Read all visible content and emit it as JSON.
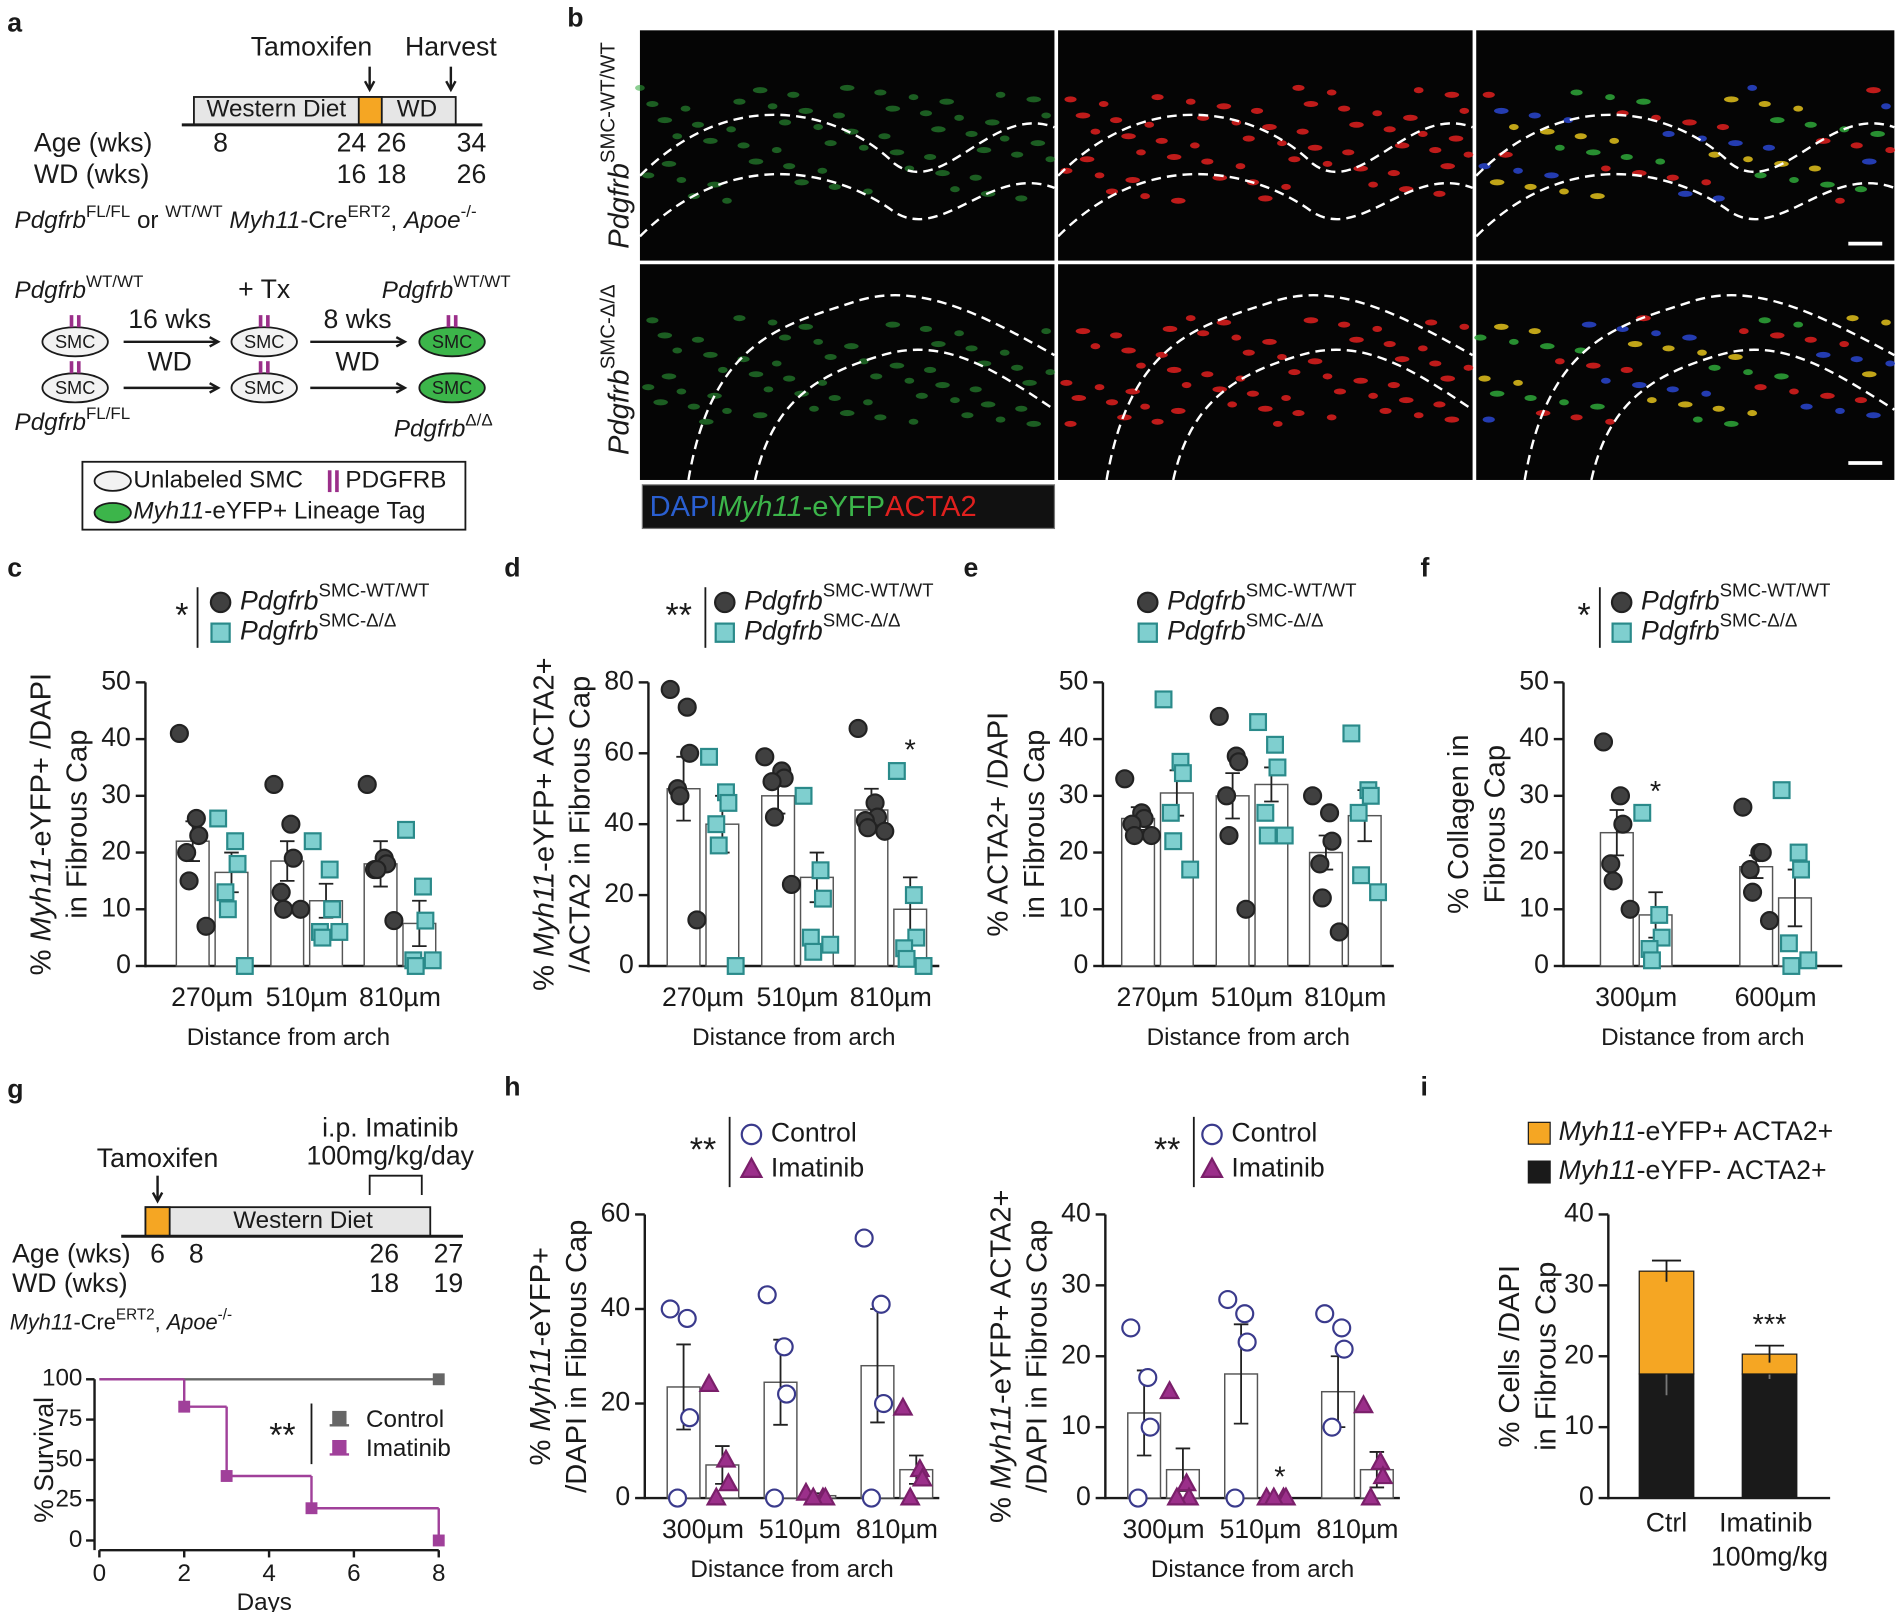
{
  "panels": {
    "a": {
      "label": "a",
      "tamoxifen": "Tamoxifen",
      "harvest": "Harvest",
      "western_diet": "Western Diet",
      "wd": "WD",
      "age_label": "Age (wks)",
      "wd_label": "WD (wks)",
      "ages": [
        "8",
        "24",
        "26",
        "34"
      ],
      "wds": [
        "16",
        "18",
        "26"
      ],
      "genotype": [
        "Pdgfrb",
        "FL/FL",
        " or ",
        "WT/WT",
        " Myh11",
        "-Cre",
        "ERT2",
        ", ",
        "Apoe",
        "-/-"
      ],
      "gene": "Pdgfrb",
      "wt": "WT/WT",
      "fl": "FL/FL",
      "del": "Δ/Δ",
      "smc": "SMC",
      "sixteen": "16 wks",
      "tx": "+ Tx",
      "eight": "8 wks",
      "wd_arrow": "WD",
      "key": [
        "Unlabeled SMC",
        "PDGFRB",
        "Myh11",
        "-eYFP+ Lineage Tag"
      ]
    },
    "b": {
      "label": "b",
      "rows": [
        [
          "Pdgfrb",
          "SMC-WT/WT"
        ],
        [
          "Pdgfrb",
          "SMC-Δ/Δ"
        ]
      ],
      "channels": [
        "DAPI",
        "Myh11",
        "-eYFP",
        "ACTA2"
      ]
    },
    "g": {
      "label": "g",
      "tamoxifen": "Tamoxifen",
      "treatment": [
        "i.p. Imatinib",
        "100mg/kg/day"
      ],
      "western_diet": "Western Diet",
      "age_label": "Age (wks)",
      "wd_label": "WD (wks)",
      "ages": [
        "6",
        "8",
        "26",
        "27"
      ],
      "wds": [
        "18",
        "19"
      ],
      "genotype": [
        "Myh11",
        "-Cre",
        "ERT2",
        ", ",
        "Apoe",
        "-/-"
      ]
    }
  },
  "chart_data": [
    {
      "type": "bar",
      "panel": "c",
      "ylabel": [
        "% Myh11-eYFP+ /DAPI",
        "in Fibrous Cap"
      ],
      "xlabel": "Distance from arch",
      "categories": [
        "270µm",
        "510µm",
        "810µm"
      ],
      "ylim": [
        0,
        50
      ],
      "yticks": [
        0,
        10,
        20,
        30,
        40,
        50
      ],
      "significance": "*",
      "series": [
        {
          "name": "Pdgfrb",
          "name_sup": "SMC-WT/WT",
          "marker": "circle",
          "color": "#404040",
          "edgecolor": "#222222",
          "values": [
            22,
            18.5,
            18
          ],
          "errors": [
            3.5,
            3.5,
            4
          ],
          "points": [
            [
              41,
              26,
              23,
              20,
              15,
              7
            ],
            [
              32,
              25,
              19,
              13,
              10,
              10
            ],
            [
              32,
              19,
              18,
              17,
              17,
              8
            ]
          ]
        },
        {
          "name": "Pdgfrb",
          "name_sup": "SMC-Δ/Δ",
          "marker": "square",
          "color": "#7fcfcf",
          "edgecolor": "#2a8a8a",
          "values": [
            16.5,
            11.5,
            7.5
          ],
          "errors": [
            3.5,
            3,
            4
          ],
          "points": [
            [
              26,
              22,
              18,
              13,
              10,
              0
            ],
            [
              22,
              17,
              10,
              6,
              5,
              6
            ],
            [
              24,
              14,
              8,
              1,
              0,
              1
            ]
          ]
        }
      ]
    },
    {
      "type": "bar",
      "panel": "d",
      "ylabel": [
        "% Myh11-eYFP+ ACTA2+",
        "/ACTA2 in Fibrous Cap"
      ],
      "xlabel": "Distance from arch",
      "categories": [
        "270µm",
        "510µm",
        "810µm"
      ],
      "ylim": [
        0,
        80
      ],
      "yticks": [
        0,
        20,
        40,
        60,
        80
      ],
      "significance": "**",
      "annotations": [
        {
          "text": "*",
          "series": 1,
          "category": 2
        }
      ],
      "series": [
        {
          "name": "Pdgfrb",
          "name_sup": "SMC-WT/WT",
          "marker": "circle",
          "color": "#404040",
          "edgecolor": "#222222",
          "values": [
            50,
            48,
            44
          ],
          "errors": [
            9,
            5,
            6
          ],
          "points": [
            [
              78,
              73,
              60,
              50,
              48,
              13
            ],
            [
              59,
              55,
              53,
              52,
              42,
              23
            ],
            [
              67,
              46,
              42,
              41,
              39,
              38
            ]
          ]
        },
        {
          "name": "Pdgfrb",
          "name_sup": "SMC-Δ/Δ",
          "marker": "square",
          "color": "#7fcfcf",
          "edgecolor": "#2a8a8a",
          "values": [
            40,
            25,
            16
          ],
          "errors": [
            8,
            7,
            9
          ],
          "points": [
            [
              59,
              49,
              46,
              40,
              34,
              0
            ],
            [
              48,
              27,
              19,
              8,
              4,
              6
            ],
            [
              55,
              20,
              8,
              5,
              2,
              0
            ]
          ]
        }
      ]
    },
    {
      "type": "bar",
      "panel": "e",
      "ylabel": [
        "% ACTA2+ /DAPI",
        "in Fibrous Cap"
      ],
      "xlabel": "Distance from arch",
      "categories": [
        "270µm",
        "510µm",
        "810µm"
      ],
      "ylim": [
        0,
        50
      ],
      "yticks": [
        0,
        10,
        20,
        30,
        40,
        50
      ],
      "series": [
        {
          "name": "Pdgfrb",
          "name_sup": "SMC-WT/WT",
          "marker": "circle",
          "color": "#404040",
          "edgecolor": "#222222",
          "values": [
            26,
            30,
            20
          ],
          "errors": [
            2,
            4,
            3
          ],
          "points": [
            [
              33,
              27,
              26,
              25,
              23,
              23
            ],
            [
              44,
              37,
              36,
              30,
              23,
              10
            ],
            [
              30,
              27,
              22,
              18,
              12,
              6
            ]
          ]
        },
        {
          "name": "Pdgfrb",
          "name_sup": "SMC-Δ/Δ",
          "marker": "square",
          "color": "#7fcfcf",
          "edgecolor": "#2a8a8a",
          "values": [
            30.5,
            32,
            26.5
          ],
          "errors": [
            4,
            3,
            4.5
          ],
          "points": [
            [
              47,
              36,
              34,
              27,
              22,
              17
            ],
            [
              43,
              39,
              35,
              27,
              23,
              23
            ],
            [
              41,
              31,
              30,
              27,
              16,
              13
            ]
          ]
        }
      ]
    },
    {
      "type": "bar",
      "panel": "f",
      "ylabel": [
        "% Collagen in",
        "Fibrous Cap"
      ],
      "xlabel": "Distance from arch",
      "categories": [
        "300µm",
        "600µm"
      ],
      "ylim": [
        0,
        50
      ],
      "yticks": [
        0,
        10,
        20,
        30,
        40,
        50
      ],
      "significance": "*",
      "annotations": [
        {
          "text": "*",
          "series": 1,
          "category": 0
        }
      ],
      "series": [
        {
          "name": "Pdgfrb",
          "name_sup": "SMC-WT/WT",
          "marker": "circle",
          "color": "#404040",
          "edgecolor": "#222222",
          "values": [
            23.5,
            17.5
          ],
          "errors": [
            4,
            2
          ],
          "points": [
            [
              39.5,
              30,
              25,
              18,
              15,
              10
            ],
            [
              28,
              20,
              20,
              17,
              13,
              8
            ]
          ]
        },
        {
          "name": "Pdgfrb",
          "name_sup": "SMC-Δ/Δ",
          "marker": "square",
          "color": "#7fcfcf",
          "edgecolor": "#2a8a8a",
          "values": [
            9,
            12
          ],
          "errors": [
            4,
            5
          ],
          "points": [
            [
              27,
              9,
              5,
              3,
              1
            ],
            [
              31,
              20,
              17,
              4,
              0,
              1
            ]
          ]
        }
      ]
    },
    {
      "type": "step",
      "ylabel": "% Survival",
      "xlabel": "Days",
      "xlim": [
        0,
        8
      ],
      "xticks": [
        0,
        2,
        4,
        6,
        8
      ],
      "ylim": [
        0,
        100
      ],
      "yticks": [
        0,
        25,
        50,
        75,
        100
      ],
      "significance": "**",
      "series": [
        {
          "name": "Control",
          "marker": "square",
          "color": "#666666",
          "x": [
            0,
            8
          ],
          "y": [
            100,
            100
          ]
        },
        {
          "name": "Imatinib",
          "marker": "square",
          "color": "#a0409a",
          "x": [
            0,
            2,
            3,
            5,
            8
          ],
          "y": [
            100,
            83,
            40,
            20,
            0
          ]
        }
      ]
    },
    {
      "type": "bar",
      "panel": "h",
      "ylabel": [
        "% Myh11-eYFP+",
        "/DAPI in Fibrous Cap"
      ],
      "xlabel": "Distance from arch",
      "categories": [
        "300µm",
        "510µm",
        "810µm"
      ],
      "ylim": [
        0,
        60
      ],
      "yticks": [
        0,
        20,
        40,
        60
      ],
      "significance": "**",
      "series": [
        {
          "name": "Control",
          "marker": "circle",
          "color": "#ffffff",
          "edgecolor": "#3a3a8c",
          "values": [
            23.5,
            24.5,
            28
          ],
          "errors": [
            9,
            9,
            12
          ],
          "points": [
            [
              40,
              38,
              17,
              0
            ],
            [
              43,
              32,
              22,
              0
            ],
            [
              55,
              41,
              20,
              0
            ]
          ]
        },
        {
          "name": "Imatinib",
          "marker": "triangle",
          "color": "#9b2f8a",
          "edgecolor": "#7a1f6a",
          "values": [
            7,
            0.5,
            6
          ],
          "errors": [
            4,
            0.5,
            3
          ],
          "points": [
            [
              24,
              8,
              3,
              0
            ],
            [
              1,
              0,
              0,
              0
            ],
            [
              19,
              6,
              4,
              0
            ]
          ]
        }
      ]
    },
    {
      "type": "bar",
      "ylabel": [
        "% Myh11-eYFP+ ACTA2+",
        "/DAPI in Fibrous Cap"
      ],
      "xlabel": "Distance from arch",
      "categories": [
        "300µm",
        "510µm",
        "810µm"
      ],
      "ylim": [
        0,
        40
      ],
      "yticks": [
        0,
        10,
        20,
        30,
        40
      ],
      "significance": "**",
      "annotations": [
        {
          "text": "*",
          "series": 1,
          "category": 1
        }
      ],
      "series": [
        {
          "name": "Control",
          "marker": "circle",
          "color": "#ffffff",
          "edgecolor": "#3a3a8c",
          "values": [
            12,
            17.5,
            15
          ],
          "errors": [
            6,
            7,
            5
          ],
          "points": [
            [
              24,
              17,
              10,
              0
            ],
            [
              28,
              26,
              22,
              0
            ],
            [
              26,
              24,
              21,
              10
            ]
          ]
        },
        {
          "name": "Imatinib",
          "marker": "triangle",
          "color": "#9b2f8a",
          "edgecolor": "#7a1f6a",
          "values": [
            4,
            0,
            4
          ],
          "errors": [
            3,
            0,
            2.5
          ],
          "points": [
            [
              15,
              2,
              0,
              0
            ],
            [
              0,
              0,
              0,
              0
            ],
            [
              13,
              5,
              3,
              0
            ]
          ]
        }
      ]
    },
    {
      "type": "stacked_bar",
      "panel": "i",
      "ylabel": [
        "% Cells /DAPI",
        "in Fibrous Cap"
      ],
      "categories": [
        "Ctrl",
        "Imatinib 100mg/kg"
      ],
      "ylim": [
        0,
        40
      ],
      "yticks": [
        0,
        10,
        20,
        30,
        40
      ],
      "annotations": [
        {
          "text": "***",
          "series": 1,
          "category": 1
        }
      ],
      "series": [
        {
          "name": "Myh11-eYFP- ACTA2+",
          "color": "#1a1a1a",
          "values": [
            17.5,
            17.5
          ],
          "errors": [
            3,
            0.7
          ]
        },
        {
          "name": "Myh11-eYFP+ ACTA2+",
          "color": "#f5a623",
          "values": [
            14.5,
            2.8
          ],
          "errors": [
            1.5,
            1.2
          ]
        }
      ]
    }
  ]
}
